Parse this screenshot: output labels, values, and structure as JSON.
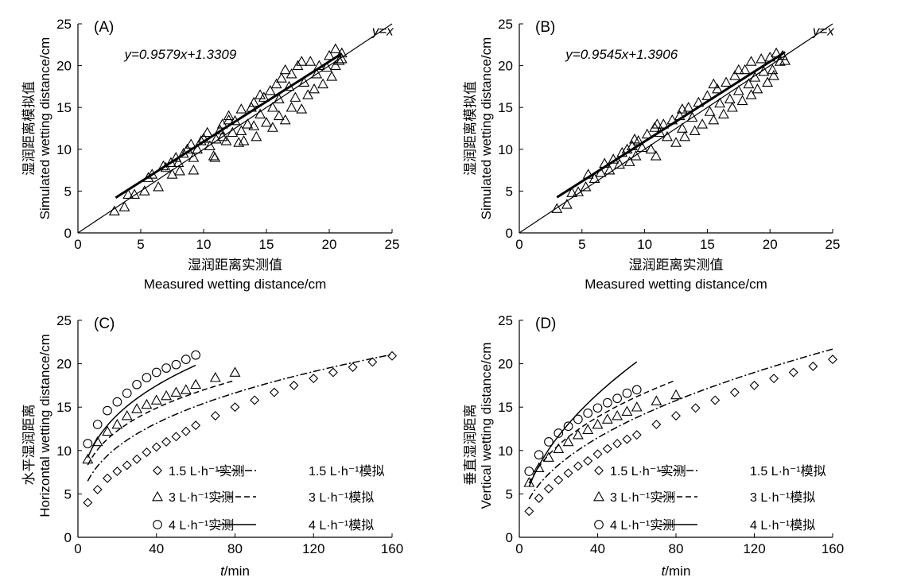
{
  "chart_data": [
    {
      "panel": "(A)",
      "type": "scatter",
      "xlabel_cn": "湿润距离实测值",
      "xlabel_en": "Measured wetting distance/cm",
      "ylabel_cn": "湿润距离模拟值",
      "ylabel_en": "Simulated wetting distance/cm",
      "xlim": [
        0,
        25
      ],
      "ylim": [
        0,
        25
      ],
      "xticks": [
        "0",
        "5",
        "10",
        "15",
        "20",
        "25"
      ],
      "yticks": [
        "0",
        "5",
        "10",
        "15",
        "20",
        "25"
      ],
      "equation": "y=0.9579x+1.3309",
      "identity_label": "y=x",
      "fit": {
        "slope": 0.9579,
        "intercept": 1.3309,
        "x_range": [
          3,
          21
        ]
      },
      "marker": "triangle",
      "points": [
        [
          2.9,
          2.6
        ],
        [
          3.7,
          3.1
        ],
        [
          4.0,
          4.6
        ],
        [
          4.5,
          4.6
        ],
        [
          5.3,
          5.0
        ],
        [
          5.6,
          6.6
        ],
        [
          5.9,
          7.0
        ],
        [
          6.4,
          5.5
        ],
        [
          6.8,
          8.0
        ],
        [
          7.0,
          7.8
        ],
        [
          7.4,
          8.4
        ],
        [
          7.5,
          7.0
        ],
        [
          7.8,
          9.0
        ],
        [
          8.0,
          8.4
        ],
        [
          8.1,
          7.4
        ],
        [
          8.4,
          9.5
        ],
        [
          8.7,
          10.0
        ],
        [
          9.0,
          10.6
        ],
        [
          9.2,
          9.0
        ],
        [
          9.2,
          7.5
        ],
        [
          9.5,
          10.0
        ],
        [
          9.8,
          11.0
        ],
        [
          10.0,
          11.3
        ],
        [
          10.3,
          12.0
        ],
        [
          10.5,
          10.4
        ],
        [
          10.8,
          9.2
        ],
        [
          10.9,
          9.0
        ],
        [
          11.0,
          11.2
        ],
        [
          11.3,
          12.3
        ],
        [
          11.5,
          13.0
        ],
        [
          11.5,
          11.5
        ],
        [
          11.8,
          11.0
        ],
        [
          12.0,
          13.5
        ],
        [
          12.3,
          12.0
        ],
        [
          12.5,
          13.4
        ],
        [
          12.8,
          10.8
        ],
        [
          13.0,
          12.2
        ],
        [
          13.0,
          14.8
        ],
        [
          13.2,
          11.0
        ],
        [
          13.5,
          13.0
        ],
        [
          13.8,
          15.0
        ],
        [
          14.0,
          12.8
        ],
        [
          14.0,
          15.6
        ],
        [
          14.2,
          11.5
        ],
        [
          14.5,
          14.2
        ],
        [
          14.8,
          16.2
        ],
        [
          15.0,
          13.2
        ],
        [
          15.3,
          17.0
        ],
        [
          15.5,
          12.6
        ],
        [
          15.5,
          15.0
        ],
        [
          15.8,
          17.8
        ],
        [
          16.0,
          14.0
        ],
        [
          16.0,
          16.0
        ],
        [
          16.2,
          18.5
        ],
        [
          16.5,
          13.5
        ],
        [
          16.8,
          17.5
        ],
        [
          17.0,
          15.0
        ],
        [
          17.0,
          19.0
        ],
        [
          17.3,
          16.2
        ],
        [
          17.5,
          20.0
        ],
        [
          17.8,
          14.8
        ],
        [
          18.0,
          18.0
        ],
        [
          18.3,
          16.5
        ],
        [
          18.5,
          20.5
        ],
        [
          18.8,
          17.2
        ],
        [
          19.0,
          19.0
        ],
        [
          19.2,
          20.0
        ],
        [
          19.5,
          17.8
        ],
        [
          19.8,
          19.8
        ],
        [
          20.0,
          21.2
        ],
        [
          20.2,
          18.7
        ],
        [
          20.5,
          22.0
        ],
        [
          20.8,
          20.6
        ],
        [
          21.0,
          21.5
        ],
        [
          20.5,
          20.0
        ],
        [
          21.0,
          20.8
        ],
        [
          17.8,
          20.5
        ],
        [
          16.5,
          19.5
        ],
        [
          14.5,
          16.5
        ],
        [
          12.0,
          14.0
        ]
      ]
    },
    {
      "panel": "(B)",
      "type": "scatter",
      "xlabel_cn": "湿润距离实测值",
      "xlabel_en": "Measured wetting distance/cm",
      "ylabel_cn": "湿润距离模拟值",
      "ylabel_en": "Simulated wetting distance/cm",
      "xlim": [
        0,
        25
      ],
      "ylim": [
        0,
        25
      ],
      "xticks": [
        "0",
        "5",
        "10",
        "15",
        "20",
        "25"
      ],
      "yticks": [
        "0",
        "5",
        "10",
        "15",
        "20",
        "25"
      ],
      "equation": "y=0.9545x+1.3906",
      "identity_label": "y=x",
      "fit": {
        "slope": 0.9545,
        "intercept": 1.3906,
        "x_range": [
          3,
          21.2
        ]
      },
      "marker": "triangle",
      "points": [
        [
          3.0,
          2.9
        ],
        [
          3.8,
          3.4
        ],
        [
          4.2,
          4.8
        ],
        [
          4.7,
          4.9
        ],
        [
          5.3,
          5.5
        ],
        [
          5.5,
          7.0
        ],
        [
          6.0,
          6.5
        ],
        [
          6.5,
          7.2
        ],
        [
          6.8,
          8.3
        ],
        [
          7.2,
          7.5
        ],
        [
          7.5,
          8.8
        ],
        [
          8.0,
          8.2
        ],
        [
          8.2,
          9.6
        ],
        [
          8.6,
          10.0
        ],
        [
          8.8,
          8.5
        ],
        [
          9.0,
          10.4
        ],
        [
          9.3,
          9.2
        ],
        [
          9.5,
          11.0
        ],
        [
          9.8,
          10.2
        ],
        [
          10.2,
          11.8
        ],
        [
          10.5,
          10.0
        ],
        [
          10.8,
          12.6
        ],
        [
          10.9,
          9.2
        ],
        [
          11.2,
          12.0
        ],
        [
          11.5,
          13.0
        ],
        [
          11.8,
          11.5
        ],
        [
          12.2,
          13.5
        ],
        [
          12.5,
          10.8
        ],
        [
          12.8,
          14.0
        ],
        [
          13.0,
          12.5
        ],
        [
          13.2,
          11.5
        ],
        [
          13.5,
          15.0
        ],
        [
          13.8,
          13.8
        ],
        [
          14.0,
          12.2
        ],
        [
          14.3,
          15.6
        ],
        [
          14.6,
          13.0
        ],
        [
          15.0,
          16.4
        ],
        [
          15.2,
          14.5
        ],
        [
          15.5,
          13.5
        ],
        [
          15.8,
          17.2
        ],
        [
          16.0,
          15.5
        ],
        [
          16.3,
          14.2
        ],
        [
          16.5,
          18.0
        ],
        [
          16.8,
          16.0
        ],
        [
          17.0,
          15.0
        ],
        [
          17.2,
          18.8
        ],
        [
          17.5,
          17.0
        ],
        [
          17.8,
          15.8
        ],
        [
          18.0,
          19.5
        ],
        [
          18.3,
          17.8
        ],
        [
          18.5,
          16.5
        ],
        [
          18.5,
          20.5
        ],
        [
          18.8,
          18.6
        ],
        [
          19.0,
          17.2
        ],
        [
          19.3,
          20.8
        ],
        [
          19.5,
          19.3
        ],
        [
          19.8,
          18.0
        ],
        [
          20.0,
          21.0
        ],
        [
          20.2,
          19.5
        ],
        [
          20.5,
          21.5
        ],
        [
          20.8,
          20.5
        ],
        [
          21.0,
          21.2
        ],
        [
          21.2,
          20.6
        ],
        [
          20.3,
          18.8
        ],
        [
          17.5,
          19.5
        ],
        [
          15.5,
          17.8
        ],
        [
          13.0,
          14.8
        ],
        [
          11.0,
          13.0
        ],
        [
          9.2,
          11.2
        ]
      ]
    },
    {
      "panel": "(C)",
      "type": "line",
      "xlabel": "t/min",
      "ylabel_cn": "水平湿润距离",
      "ylabel_en": "Horizontal wetting distance/cm",
      "xlim": [
        0,
        160
      ],
      "ylim": [
        0,
        25
      ],
      "xticks": [
        "0",
        "40",
        "80",
        "120",
        "160"
      ],
      "yticks": [
        "0",
        "5",
        "10",
        "15",
        "20",
        "25"
      ],
      "legend": [
        {
          "marker": "diamond",
          "label": "1.5 L·h⁻¹实测"
        },
        {
          "line": "dashdot",
          "label": "1.5 L·h⁻¹模拟"
        },
        {
          "marker": "triangle",
          "label": "3 L·h⁻¹实测"
        },
        {
          "line": "dashed",
          "label": "3 L·h⁻¹模拟"
        },
        {
          "marker": "circle",
          "label": "4 L·h⁻¹实测"
        },
        {
          "line": "solid",
          "label": "4 L·h⁻¹模拟"
        }
      ],
      "measured": [
        {
          "marker": "diamond",
          "x": [
            5,
            10,
            15,
            20,
            25,
            30,
            35,
            40,
            45,
            50,
            55,
            60,
            70,
            80,
            90,
            100,
            110,
            120,
            130,
            140,
            150,
            160
          ],
          "y": [
            4.0,
            5.5,
            6.8,
            7.6,
            8.3,
            9.0,
            9.8,
            10.4,
            11.0,
            11.6,
            12.2,
            12.9,
            14.0,
            15.0,
            15.8,
            16.7,
            17.5,
            18.3,
            19.0,
            19.6,
            20.2,
            20.9
          ]
        },
        {
          "marker": "triangle",
          "x": [
            5,
            10,
            15,
            20,
            25,
            30,
            35,
            40,
            45,
            50,
            55,
            60,
            70,
            80
          ],
          "y": [
            9.0,
            11.0,
            12.2,
            13.0,
            14.0,
            14.8,
            15.3,
            15.8,
            16.3,
            16.7,
            17.0,
            17.6,
            18.4,
            19.0
          ]
        },
        {
          "marker": "circle",
          "x": [
            5,
            10,
            15,
            20,
            25,
            30,
            35,
            40,
            45,
            50,
            55,
            60
          ],
          "y": [
            10.8,
            13.0,
            14.6,
            15.6,
            16.6,
            17.6,
            18.4,
            19.0,
            19.5,
            19.9,
            20.5,
            21.0
          ]
        }
      ],
      "simulated": [
        {
          "line": "dashdot",
          "a": 3.75,
          "b": 0.34,
          "x_range": [
            5,
            160
          ]
        },
        {
          "line": "dashed",
          "a": 5.3,
          "b": 0.28,
          "x_range": [
            5,
            80
          ]
        },
        {
          "line": "solid",
          "a": 5.57,
          "b": 0.31,
          "x_range": [
            5,
            60
          ]
        }
      ]
    },
    {
      "panel": "(D)",
      "type": "line",
      "xlabel": "t/min",
      "ylabel_cn": "垂直湿润距离",
      "ylabel_en": "Vertical wetting distance/cm",
      "xlim": [
        0,
        160
      ],
      "ylim": [
        0,
        25
      ],
      "xticks": [
        "0",
        "40",
        "80",
        "120",
        "160"
      ],
      "yticks": [
        "0",
        "5",
        "10",
        "15",
        "20",
        "25"
      ],
      "legend": [
        {
          "marker": "diamond",
          "label": "1.5 L·h⁻¹实测"
        },
        {
          "line": "dashdot",
          "label": "1.5 L·h⁻¹模拟"
        },
        {
          "marker": "triangle",
          "label": "3 L·h⁻¹实测"
        },
        {
          "line": "dashed",
          "label": "3 L·h⁻¹模拟"
        },
        {
          "marker": "circle",
          "label": "4 L·h⁻¹实测"
        },
        {
          "line": "solid",
          "label": "4 L·h⁻¹模拟"
        }
      ],
      "measured": [
        {
          "marker": "diamond",
          "x": [
            5,
            10,
            15,
            20,
            25,
            30,
            35,
            40,
            45,
            50,
            55,
            60,
            70,
            80,
            90,
            100,
            110,
            120,
            130,
            140,
            150,
            160
          ],
          "y": [
            3.0,
            4.5,
            5.6,
            6.6,
            7.4,
            8.2,
            8.8,
            9.6,
            10.2,
            10.8,
            11.3,
            11.8,
            13.0,
            14.0,
            14.9,
            15.8,
            16.7,
            17.5,
            18.3,
            19.0,
            19.7,
            20.5
          ]
        },
        {
          "marker": "triangle",
          "x": [
            5,
            10,
            15,
            20,
            25,
            30,
            35,
            40,
            45,
            50,
            55,
            60,
            70,
            80
          ],
          "y": [
            6.3,
            8.0,
            9.2,
            10.2,
            11.0,
            11.8,
            12.4,
            13.0,
            13.6,
            14.0,
            14.5,
            15.0,
            15.7,
            16.4
          ]
        },
        {
          "marker": "circle",
          "x": [
            5,
            10,
            15,
            20,
            25,
            30,
            35,
            40,
            45,
            50,
            55,
            60
          ],
          "y": [
            7.6,
            9.5,
            11.0,
            12.0,
            12.8,
            13.6,
            14.3,
            14.9,
            15.5,
            16.0,
            16.6,
            17.0
          ]
        }
      ],
      "simulated": [
        {
          "line": "dashdot",
          "a": 2.1,
          "b": 0.46,
          "x_range": [
            5,
            160
          ]
        },
        {
          "line": "dashed",
          "a": 3.35,
          "b": 0.385,
          "x_range": [
            5,
            80
          ]
        },
        {
          "line": "solid",
          "a": 2.61,
          "b": 0.5,
          "x_range": [
            5,
            60
          ]
        }
      ]
    }
  ]
}
